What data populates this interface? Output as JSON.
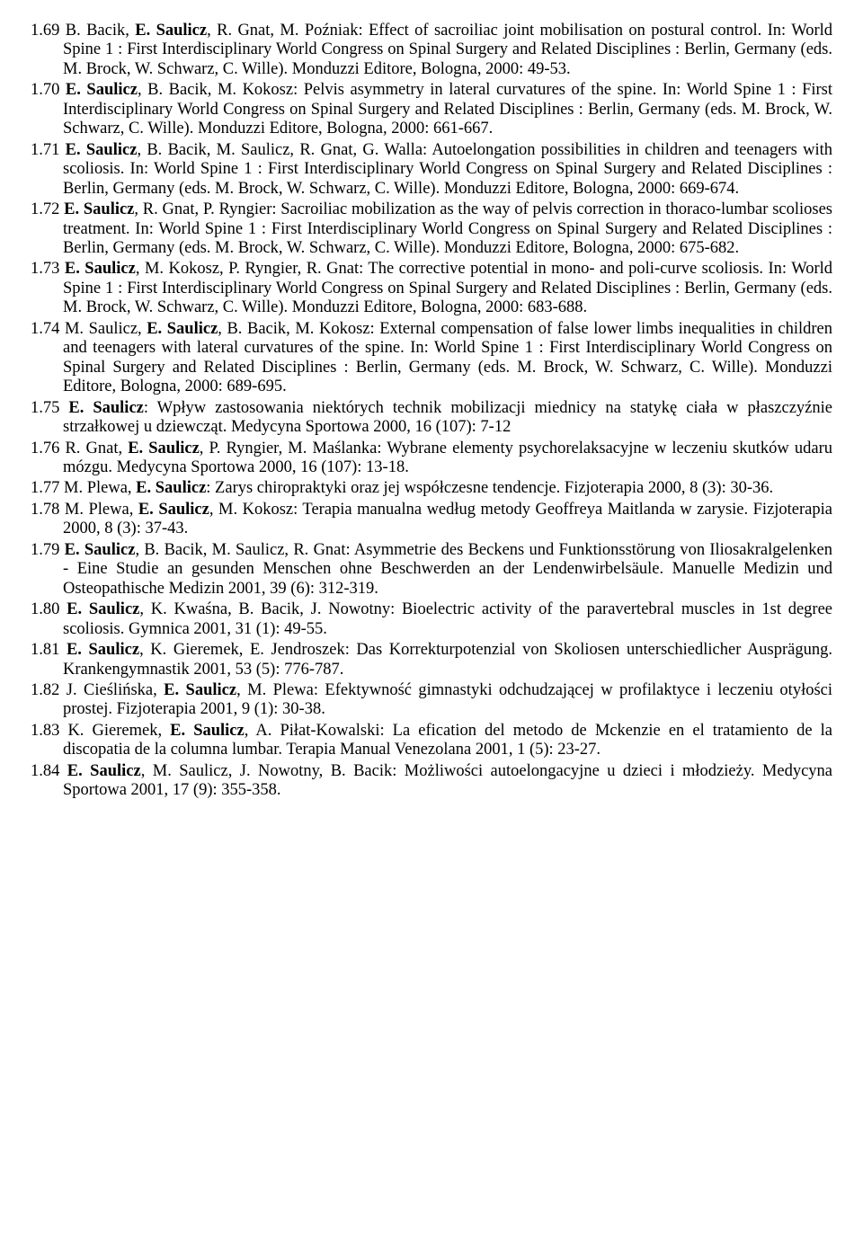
{
  "entries": [
    {
      "num": "1.69",
      "seg": [
        {
          "t": " B. Bacik, "
        },
        {
          "t": "E. Saulicz",
          "b": true
        },
        {
          "t": ", R. Gnat, M. Poźniak: Effect of sacroiliac joint mobilisation on postural control. In: World Spine 1 : First Interdisciplinary World Congress on Spinal Surgery and Related Disciplines : Berlin, Germany (eds. M. Brock, W. Schwarz, C. Wille). Monduzzi Editore, Bologna, 2000: 49-53."
        }
      ]
    },
    {
      "num": "1.70",
      "seg": [
        {
          "t": " "
        },
        {
          "t": "E. Saulicz",
          "b": true
        },
        {
          "t": ", B. Bacik, M. Kokosz: Pelvis asymmetry in lateral curvatures of the spine. In: World Spine 1 : First Interdisciplinary World Congress on Spinal Surgery and Related Disciplines : Berlin, Germany (eds. M. Brock, W. Schwarz, C. Wille). Monduzzi Editore, Bologna, 2000: 661-667."
        }
      ]
    },
    {
      "num": "1.71",
      "seg": [
        {
          "t": " "
        },
        {
          "t": "E. Saulicz",
          "b": true
        },
        {
          "t": ", B. Bacik, M. Saulicz, R. Gnat, G. Walla: Autoelongation possibilities in children and teenagers with scoliosis. In: World Spine 1 : First Interdisciplinary World Congress on Spinal Surgery and Related Disciplines : Berlin, Germany (eds. M. Brock, W. Schwarz, C. Wille). Monduzzi Editore, Bologna, 2000: 669-674."
        }
      ]
    },
    {
      "num": "1.72",
      "seg": [
        {
          "t": " "
        },
        {
          "t": "E. Saulicz",
          "b": true
        },
        {
          "t": ", R. Gnat, P. Ryngier: Sacroiliac mobilization as the way of pelvis correction in thoraco-lumbar scolioses treatment. In: World Spine 1 : First Interdisciplinary World Congress on Spinal Surgery and Related Disciplines : Berlin, Germany (eds. M. Brock, W. Schwarz, C. Wille). Monduzzi Editore, Bologna, 2000: 675-682."
        }
      ]
    },
    {
      "num": "1.73",
      "seg": [
        {
          "t": " "
        },
        {
          "t": "E. Saulicz",
          "b": true
        },
        {
          "t": ", M. Kokosz, P. Ryngier, R. Gnat: The corrective potential in mono- and poli-curve scoliosis. In: World Spine 1 : First Interdisciplinary World Congress on Spinal Surgery and Related Disciplines : Berlin, Germany (eds. M. Brock, W. Schwarz, C. Wille). Monduzzi Editore, Bologna, 2000: 683-688."
        }
      ]
    },
    {
      "num": "1.74",
      "seg": [
        {
          "t": " M. Saulicz, "
        },
        {
          "t": "E. Saulicz",
          "b": true
        },
        {
          "t": ", B. Bacik, M. Kokosz: External compensation of false lower limbs inequalities in children and teenagers with lateral curvatures of the spine. In: World Spine 1 : First Interdisciplinary World Congress on Spinal Surgery and Related Disciplines : Berlin, Germany (eds. M. Brock, W. Schwarz, C. Wille). Monduzzi Editore, Bologna, 2000: 689-695."
        }
      ]
    },
    {
      "num": "1.75",
      "seg": [
        {
          "t": " "
        },
        {
          "t": "E. Saulicz",
          "b": true
        },
        {
          "t": ": Wpływ zastosowania niektórych technik mobilizacji miednicy na statykę ciała w płaszczyźnie strzałkowej u dziewcząt. Medycyna Sportowa 2000, 16 (107): 7-12"
        }
      ]
    },
    {
      "num": "1.76",
      "seg": [
        {
          "t": " R. Gnat, "
        },
        {
          "t": "E. Saulicz",
          "b": true
        },
        {
          "t": ", P. Ryngier, M. Maślanka: Wybrane elementy psychorelaksacyjne w leczeniu skutków udaru mózgu. Medycyna Sportowa 2000, 16 (107): 13-18."
        }
      ]
    },
    {
      "num": "1.77",
      "seg": [
        {
          "t": " M. Plewa, "
        },
        {
          "t": "E. Saulicz",
          "b": true
        },
        {
          "t": ": Zarys chiropraktyki oraz jej współczesne tendencje. Fizjoterapia 2000, 8 (3): 30-36."
        }
      ]
    },
    {
      "num": "1.78",
      "seg": [
        {
          "t": " M. Plewa, "
        },
        {
          "t": "E. Saulicz",
          "b": true
        },
        {
          "t": ", M. Kokosz: Terapia manualna według metody Geoffreya Maitlanda w zarysie. Fizjoterapia 2000, 8 (3): 37-43."
        }
      ]
    },
    {
      "num": "1.79",
      "seg": [
        {
          "t": " "
        },
        {
          "t": "E. Saulicz",
          "b": true
        },
        {
          "t": ", B. Bacik, M. Saulicz, R. Gnat: Asymmetrie des Beckens und Funktionsstörung von Iliosakralgelenken - Eine Studie an gesunden Menschen ohne Beschwerden an der Lendenwirbelsäule. Manuelle Medizin und Osteopathische Medizin 2001, 39 (6): 312-319."
        }
      ]
    },
    {
      "num": "1.80",
      "seg": [
        {
          "t": " "
        },
        {
          "t": "E. Saulicz",
          "b": true
        },
        {
          "t": ", K. Kwaśna, B. Bacik, J. Nowotny: Bioelectric activity of the paravertebral muscles in 1st degree scoliosis. Gymnica 2001, 31 (1): 49-55."
        }
      ]
    },
    {
      "num": "1.81",
      "seg": [
        {
          "t": " "
        },
        {
          "t": "E. Saulicz",
          "b": true
        },
        {
          "t": ", K. Gieremek, E. Jendroszek: Das Korrekturpotenzial von Skoliosen unterschiedlicher Ausprägung. Krankengymnastik 2001, 53 (5): 776-787."
        }
      ]
    },
    {
      "num": "1.82",
      "seg": [
        {
          "t": " J. Cieślińska, "
        },
        {
          "t": "E. Saulicz",
          "b": true
        },
        {
          "t": ", M. Plewa: Efektywność gimnastyki odchudzającej w profilaktyce i leczeniu otyłości prostej. Fizjoterapia 2001, 9 (1): 30-38."
        }
      ]
    },
    {
      "num": "1.83",
      "seg": [
        {
          "t": " K. Gieremek, "
        },
        {
          "t": "E. Saulicz",
          "b": true
        },
        {
          "t": ", A. Piłat-Kowalski: La efication del metodo de Mckenzie en el tratamiento de la discopatia de la columna lumbar. Terapia Manual Venezolana 2001, 1 (5): 23-27."
        }
      ]
    },
    {
      "num": "1.84",
      "seg": [
        {
          "t": " "
        },
        {
          "t": "E. Saulicz",
          "b": true
        },
        {
          "t": ", M. Saulicz, J. Nowotny, B. Bacik: Możliwości autoelongacyjne u dzieci i młodzieży. Medycyna Sportowa 2001, 17 (9): 355-358."
        }
      ]
    }
  ]
}
